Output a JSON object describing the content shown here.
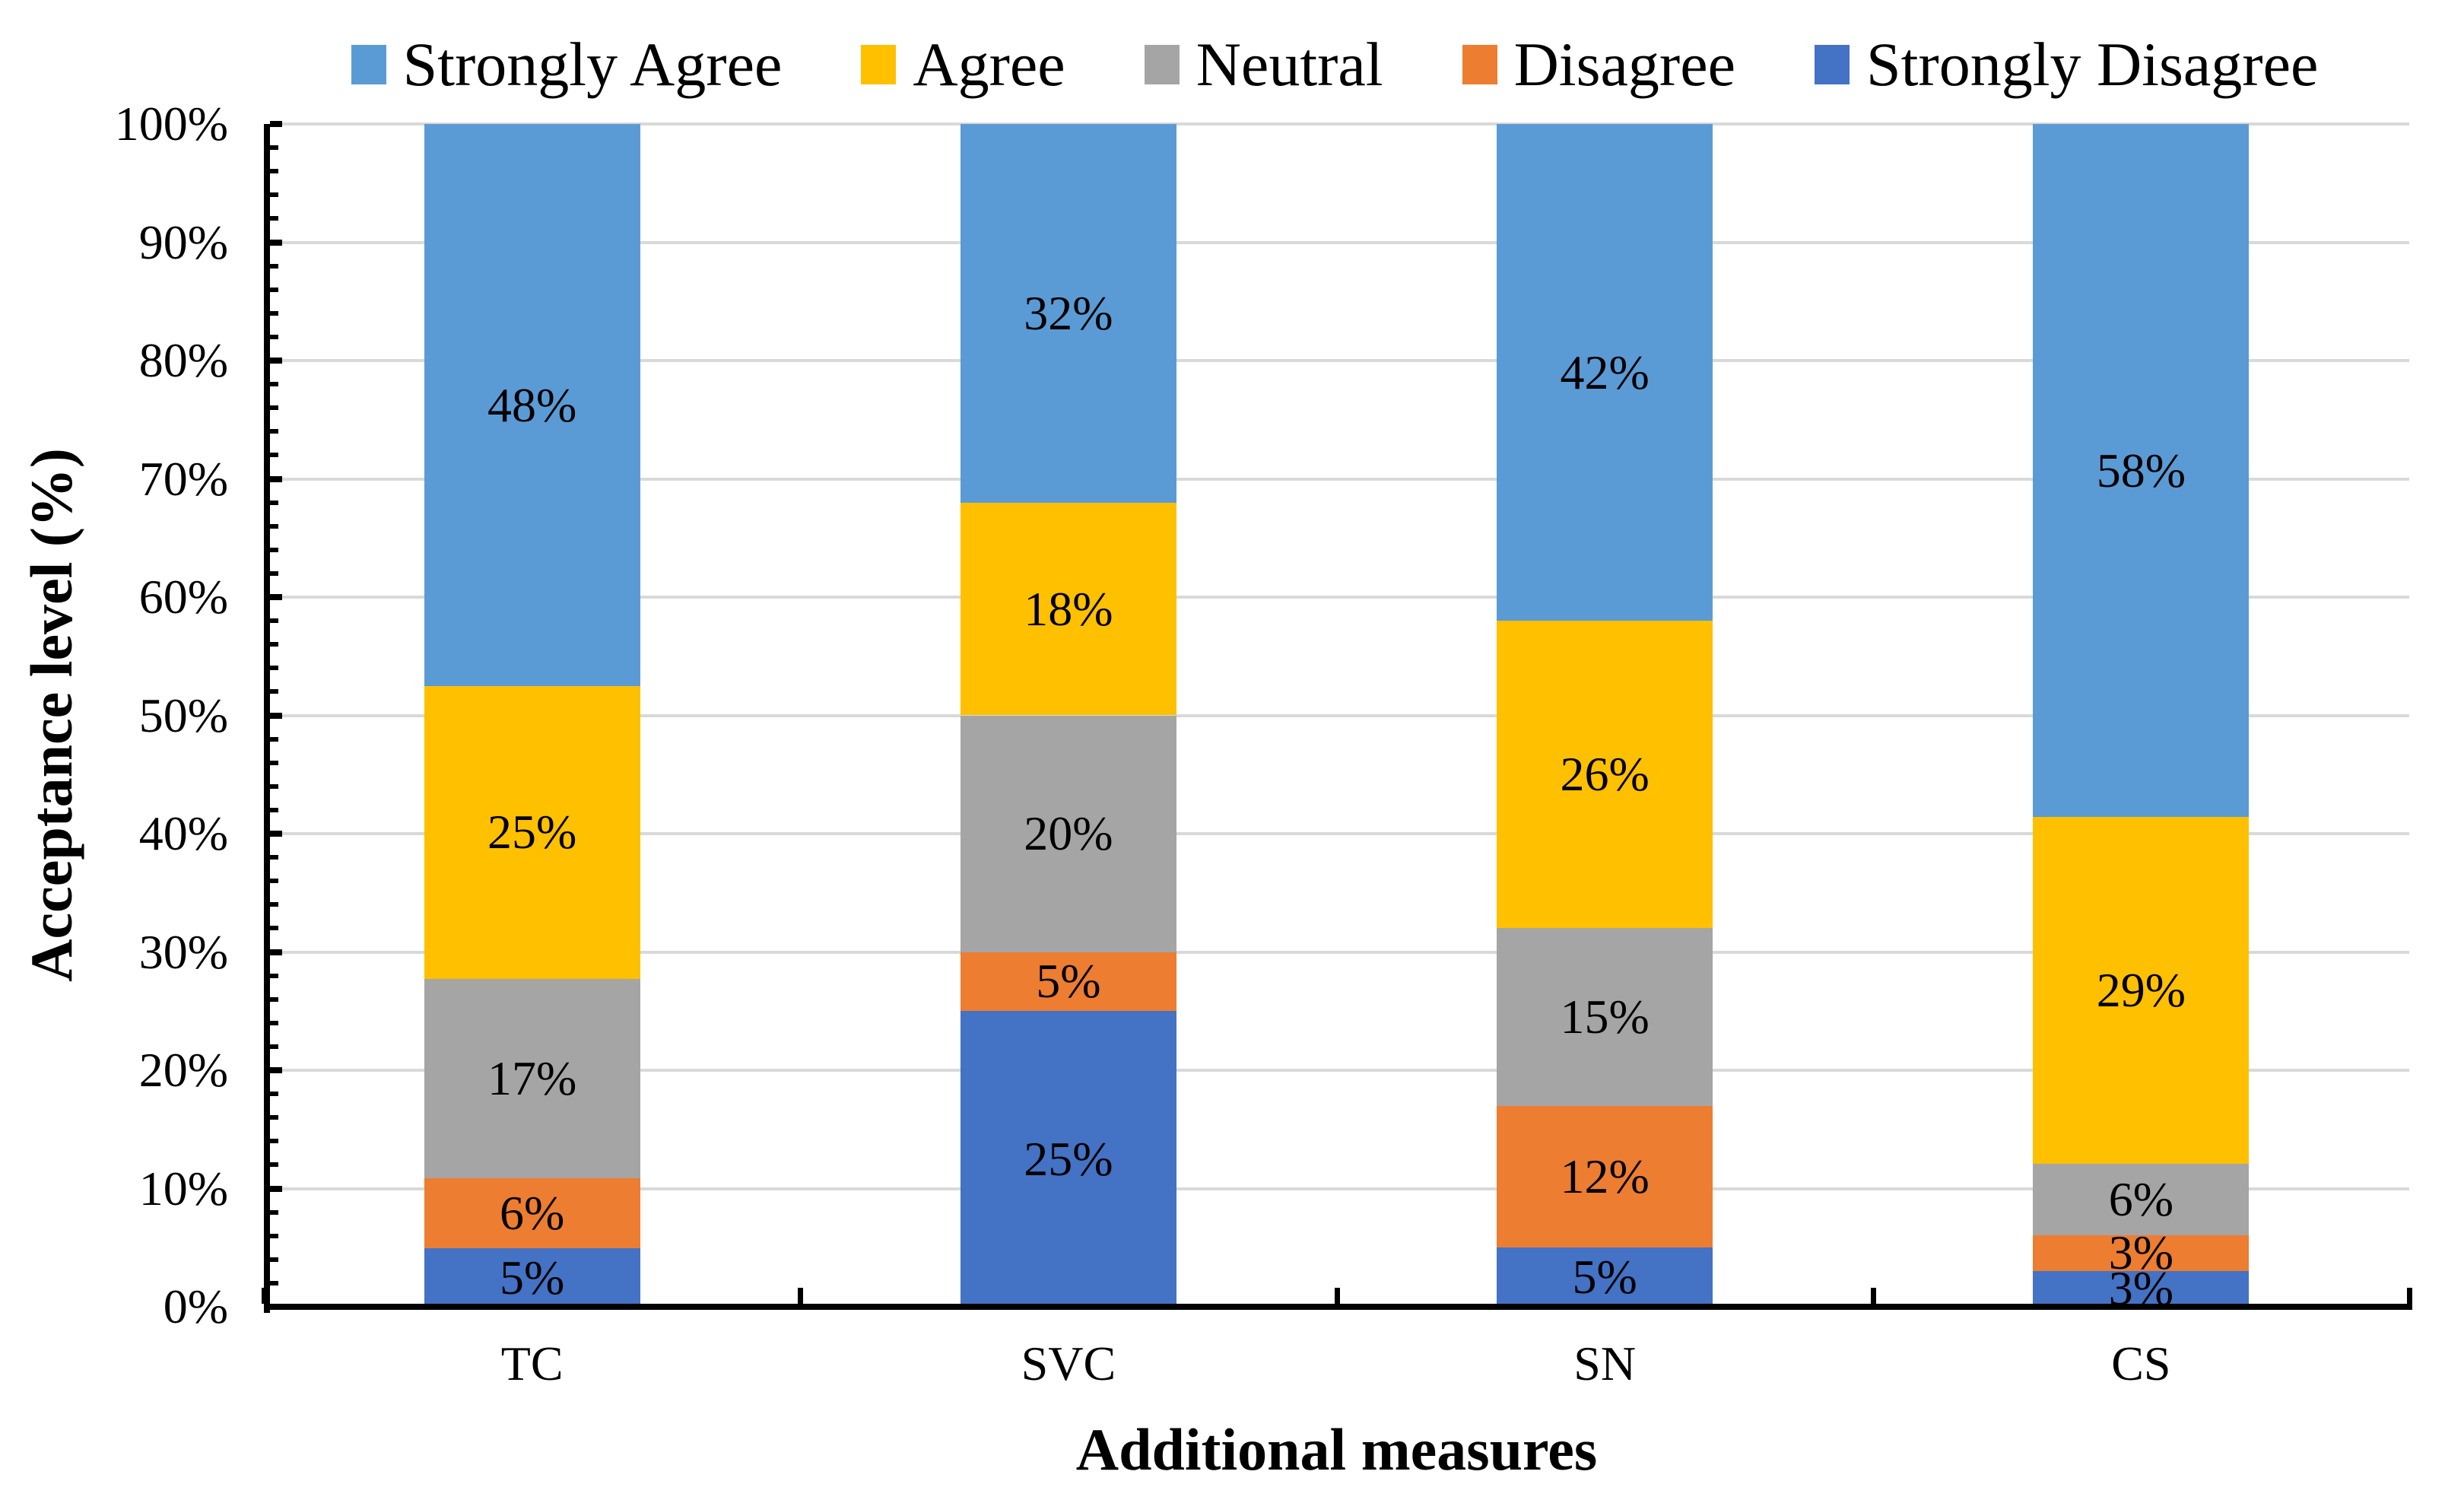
{
  "axes": {
    "y_title": "Acceptance level (%)",
    "x_title": "Additional measures",
    "y_ticks": [
      "0%",
      "10%",
      "20%",
      "30%",
      "40%",
      "50%",
      "60%",
      "70%",
      "80%",
      "90%",
      "100%"
    ]
  },
  "colors": {
    "background": "#FFFFFF",
    "gridline": "#D9D9D9",
    "axis": "#000000",
    "text": "#000000"
  },
  "chart_data": {
    "type": "bar",
    "stacked": true,
    "percent_stacked": true,
    "title": "",
    "xlabel": "Additional measures",
    "ylabel": "Acceptance level (%)",
    "ylim": [
      0,
      100
    ],
    "y_tick_step": 10,
    "y_minor_tick_step": 2,
    "grid": "horizontal",
    "legend_position": "top",
    "categories": [
      "TC",
      "SVC",
      "SN",
      "CS"
    ],
    "series": [
      {
        "name": "Strongly Agree",
        "color": "#5B9BD5",
        "values": [
          48,
          32,
          42,
          58
        ],
        "labels": [
          "48%",
          "32%",
          "42%",
          "58%"
        ]
      },
      {
        "name": "Agree",
        "color": "#FFC000",
        "values": [
          25,
          18,
          26,
          29
        ],
        "labels": [
          "25%",
          "18%",
          "26%",
          "29%"
        ]
      },
      {
        "name": "Neutral",
        "color": "#A5A5A5",
        "values": [
          17,
          20,
          15,
          6
        ],
        "labels": [
          "17%",
          "20%",
          "15%",
          "6%"
        ]
      },
      {
        "name": "Disagree",
        "color": "#ED7D31",
        "values": [
          6,
          5,
          12,
          3
        ],
        "labels": [
          "6%",
          "5%",
          "12%",
          "3%"
        ]
      },
      {
        "name": "Strongly Disagree",
        "color": "#4472C4",
        "values": [
          5,
          25,
          5,
          3
        ],
        "labels": [
          "5%",
          "25%",
          "5%",
          "3%"
        ]
      }
    ],
    "stack_order_bottom_to_top": [
      "Strongly Disagree",
      "Disagree",
      "Neutral",
      "Agree",
      "Strongly Agree"
    ]
  }
}
